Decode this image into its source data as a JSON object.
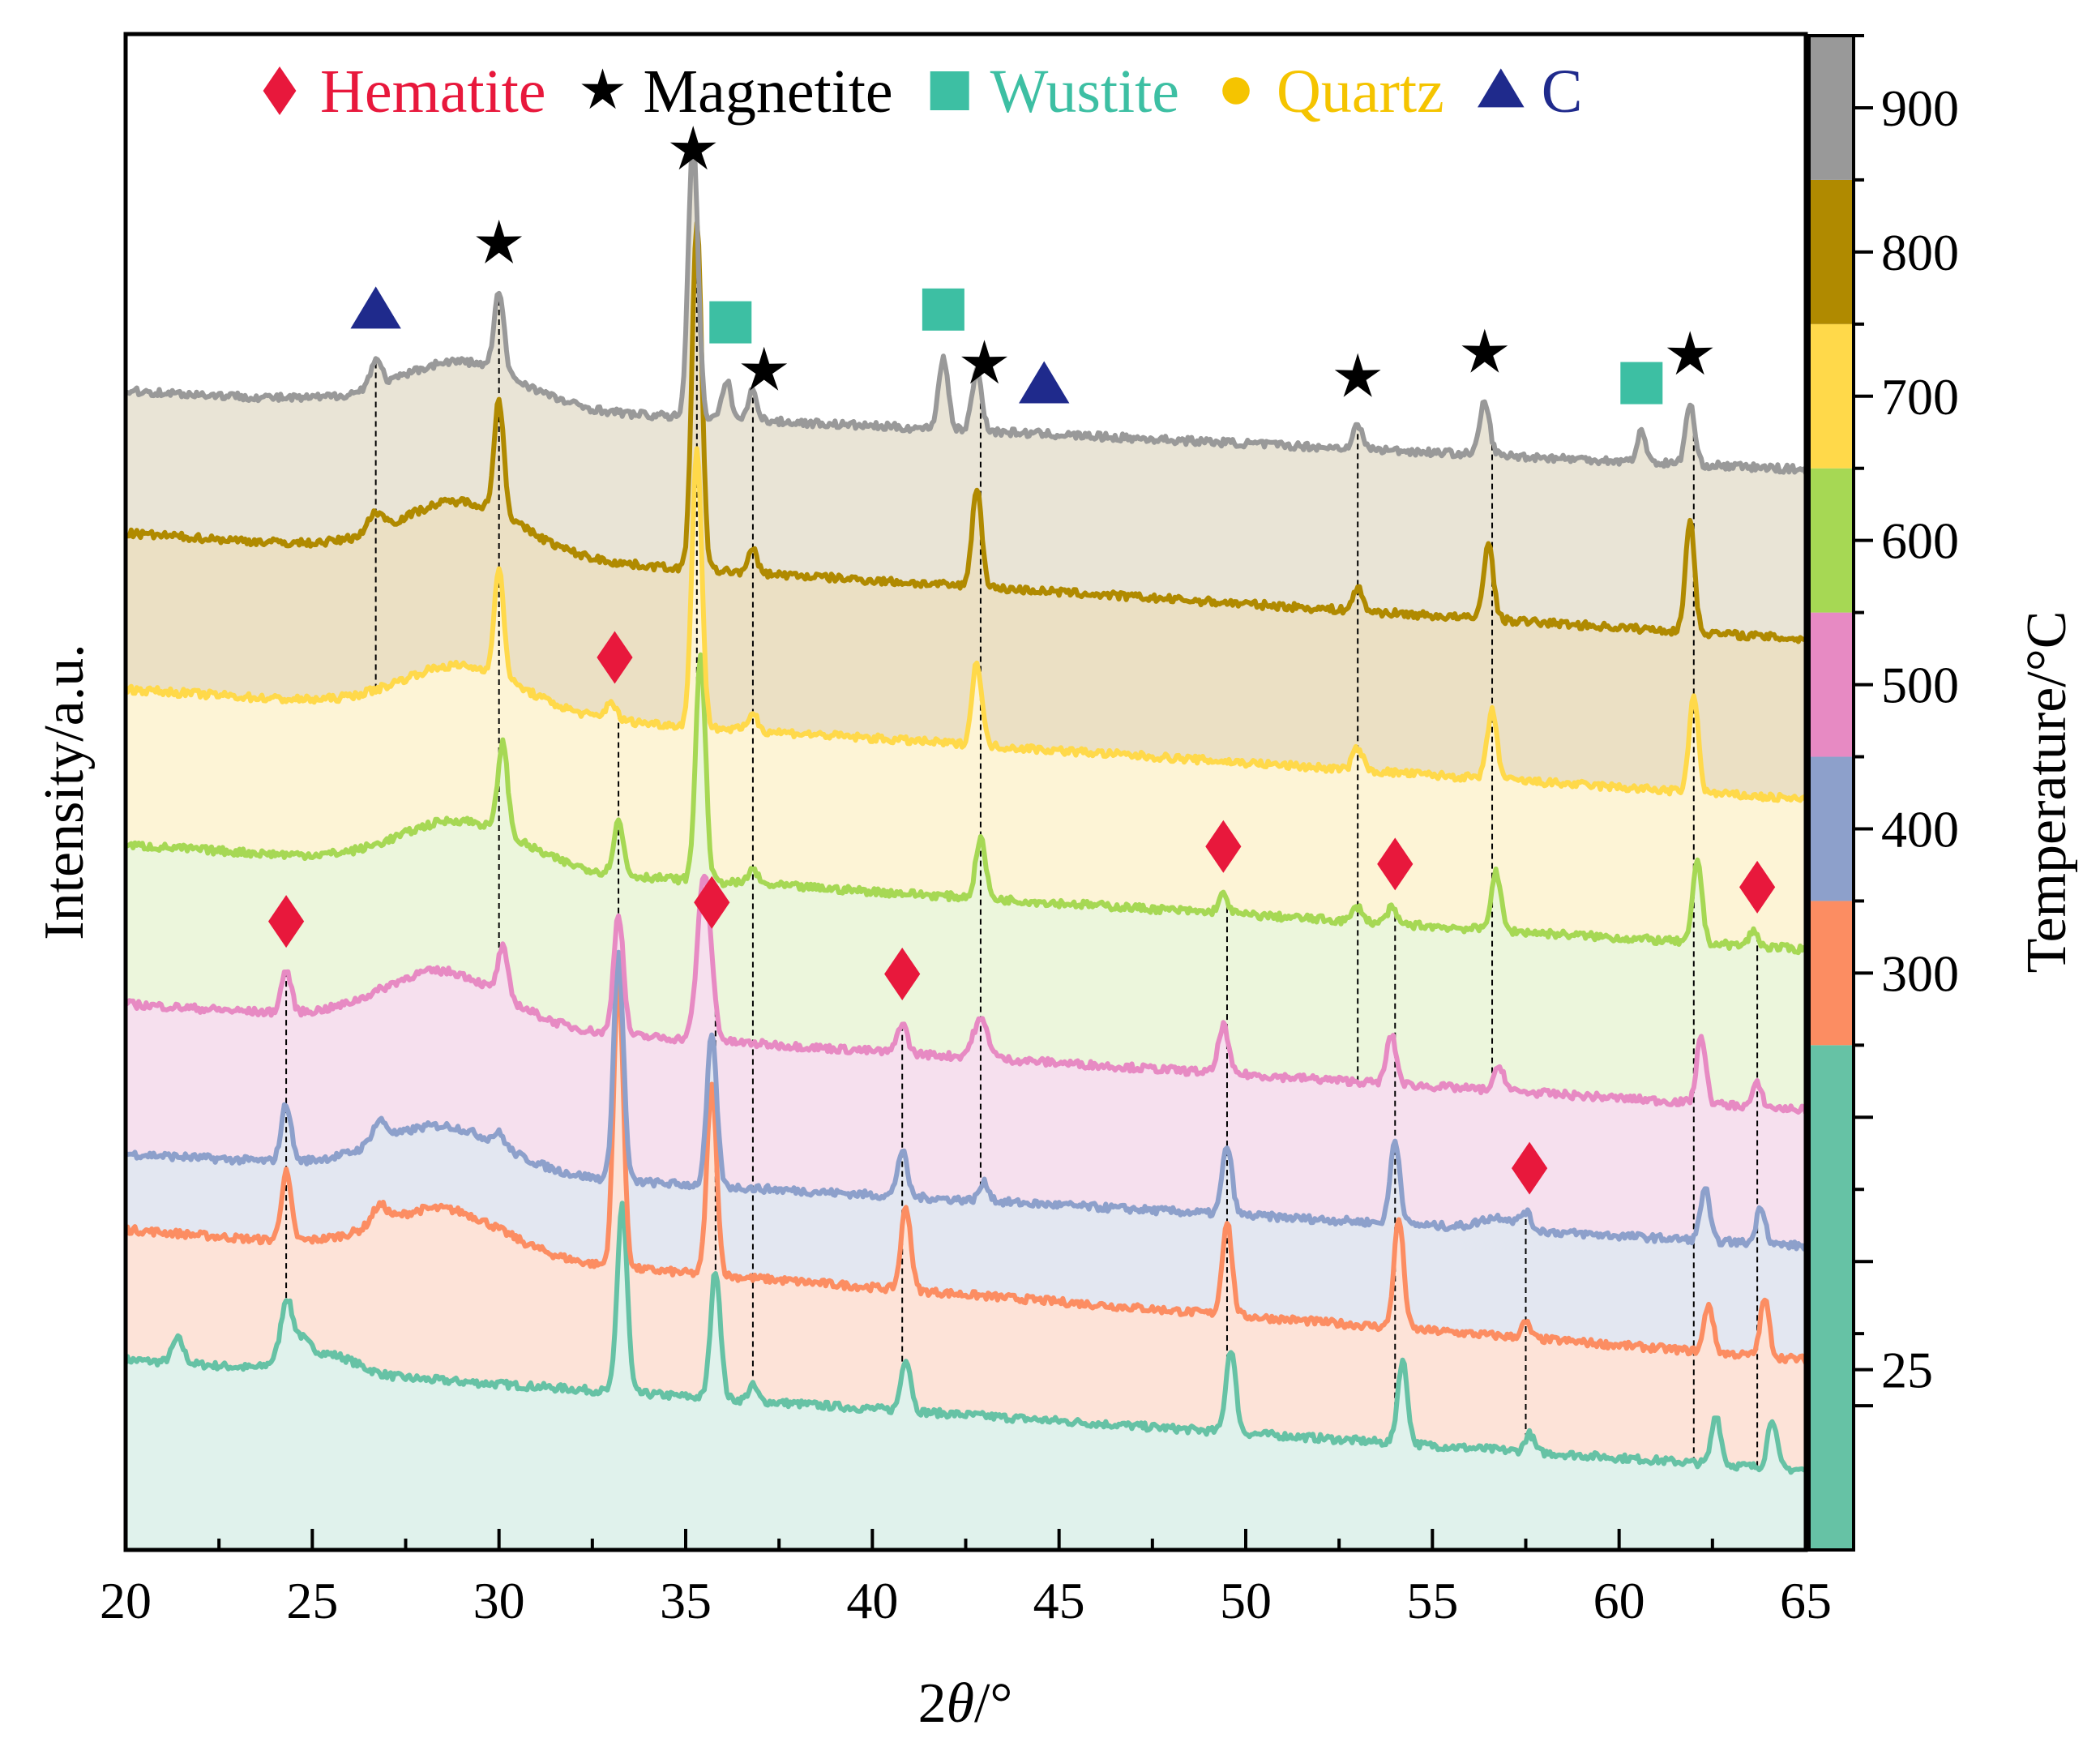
{
  "chart_data": {
    "type": "line",
    "title": "",
    "xlabel_prefix": "2",
    "xlabel_theta": "θ",
    "xlabel_suffix": "/°",
    "ylabel": "Intensity/a.u.",
    "colorbar_label": "Temperature/°C",
    "xlim": [
      20,
      65
    ],
    "x_ticks": [
      "20",
      "25",
      "30",
      "35",
      "40",
      "45",
      "50",
      "55",
      "60",
      "65"
    ],
    "colorbar_ticks": [
      "25",
      "300",
      "400",
      "500",
      "600",
      "700",
      "800",
      "900"
    ],
    "colorbar_tick_values": [
      25,
      300,
      400,
      500,
      600,
      700,
      800,
      900
    ],
    "colorbar_range": [
      -100,
      950
    ],
    "colorbar_bands": [
      {
        "from": -100,
        "to": 250,
        "color": "#66c2a5"
      },
      {
        "from": 250,
        "to": 350,
        "color": "#fc8d62"
      },
      {
        "from": 350,
        "to": 450,
        "color": "#8da0cb"
      },
      {
        "from": 450,
        "to": 550,
        "color": "#e78ac3"
      },
      {
        "from": 550,
        "to": 650,
        "color": "#a6d854"
      },
      {
        "from": 650,
        "to": 750,
        "color": "#ffd94a"
      },
      {
        "from": 750,
        "to": 850,
        "color": "#b08a00"
      },
      {
        "from": 850,
        "to": 950,
        "color": "#999999"
      }
    ],
    "legend": [
      {
        "symbol": "diamond",
        "label": "Hematite",
        "color": "#e8183c"
      },
      {
        "symbol": "star",
        "label": "Magnetite",
        "color": "#000000"
      },
      {
        "symbol": "square",
        "label": "Wustite",
        "color": "#3dbfa3"
      },
      {
        "symbol": "circle",
        "label": "Quartz",
        "color": "#f5c400"
      },
      {
        "symbol": "triangle",
        "label": "C",
        "color": "#1f2a8c"
      }
    ],
    "series": [
      {
        "name": "25",
        "color": "#66c2a5",
        "fill": "#e0f2ec",
        "start": 122,
        "end": 49,
        "bumps": [
          [
            24.5,
            20,
            0.35
          ],
          [
            25.5,
            12,
            0.7
          ]
        ],
        "peaks": [
          [
            21.4,
            16,
            0.15
          ],
          [
            24.3,
            28,
            0.13
          ],
          [
            33.3,
            125,
            0.13
          ],
          [
            35.8,
            85,
            0.13
          ],
          [
            36.8,
            10,
            0.12
          ],
          [
            40.9,
            35,
            0.13
          ],
          [
            49.6,
            55,
            0.13
          ],
          [
            54.2,
            55,
            0.13
          ],
          [
            57.6,
            12,
            0.12
          ],
          [
            62.6,
            33,
            0.12
          ],
          [
            64.1,
            33,
            0.12
          ]
        ]
      },
      {
        "name": "300",
        "color": "#fc8d62",
        "fill": "#fde3d8",
        "start": 208,
        "end": 122,
        "bumps": [
          [
            28.5,
            30,
            1.6
          ]
        ],
        "peaks": [
          [
            24.3,
            45,
            0.13
          ],
          [
            26.8,
            12,
            0.2
          ],
          [
            33.2,
            190,
            0.13
          ],
          [
            35.7,
            125,
            0.13
          ],
          [
            40.9,
            55,
            0.13
          ],
          [
            49.5,
            62,
            0.13
          ],
          [
            54.1,
            72,
            0.13
          ],
          [
            57.5,
            10,
            0.12
          ],
          [
            62.4,
            32,
            0.12
          ],
          [
            63.9,
            38,
            0.12
          ]
        ]
      },
      {
        "name": "400",
        "color": "#8da0cb",
        "fill": "#e3e7f1",
        "start": 258,
        "end": 197,
        "bumps": [
          [
            28.5,
            30,
            1.6
          ],
          [
            56.8,
            8,
            0.5
          ]
        ],
        "peaks": [
          [
            24.3,
            38,
            0.13
          ],
          [
            26.8,
            14,
            0.2
          ],
          [
            30.0,
            8,
            0.15
          ],
          [
            33.2,
            150,
            0.13
          ],
          [
            35.7,
            100,
            0.13
          ],
          [
            40.8,
            30,
            0.13
          ],
          [
            43.0,
            12,
            0.13
          ],
          [
            49.5,
            45,
            0.13
          ],
          [
            54.0,
            55,
            0.13
          ],
          [
            57.5,
            10,
            0.12
          ],
          [
            62.3,
            35,
            0.12
          ],
          [
            63.8,
            25,
            0.12
          ]
        ]
      },
      {
        "name": "500",
        "color": "#e78ac3",
        "fill": "#f6e0ee",
        "start": 357,
        "end": 287,
        "bumps": [
          [
            28.5,
            35,
            1.6
          ]
        ],
        "peaks": [
          [
            24.3,
            28,
            0.13
          ],
          [
            30.1,
            32,
            0.13
          ],
          [
            33.2,
            80,
            0.13
          ],
          [
            35.5,
            110,
            0.18
          ],
          [
            40.8,
            20,
            0.13
          ],
          [
            42.9,
            25,
            0.2
          ],
          [
            49.4,
            32,
            0.13
          ],
          [
            53.9,
            32,
            0.13
          ],
          [
            56.8,
            16,
            0.13
          ],
          [
            62.2,
            45,
            0.12
          ],
          [
            63.7,
            15,
            0.12
          ]
        ]
      },
      {
        "name": "600",
        "color": "#a6d854",
        "fill": "#ecf6dc",
        "start": 462,
        "end": 393,
        "bumps": [
          [
            29.0,
            30,
            1.6
          ]
        ],
        "peaks": [
          [
            30.1,
            60,
            0.13
          ],
          [
            33.2,
            35,
            0.13
          ],
          [
            35.4,
            150,
            0.13
          ],
          [
            36.8,
            10,
            0.12
          ],
          [
            42.9,
            40,
            0.13
          ],
          [
            49.4,
            12,
            0.13
          ],
          [
            53.0,
            10,
            0.13
          ],
          [
            53.9,
            10,
            0.13
          ],
          [
            56.7,
            38,
            0.13
          ],
          [
            62.1,
            55,
            0.12
          ],
          [
            63.6,
            10,
            0.12
          ]
        ]
      },
      {
        "name": "700",
        "color": "#ffd94a",
        "fill": "#fdf4d6",
        "start": 565,
        "end": 492,
        "bumps": [
          [
            29.0,
            30,
            1.6
          ]
        ],
        "peaks": [
          [
            30.0,
            70,
            0.13
          ],
          [
            33.0,
            12,
            0.13
          ],
          [
            35.3,
            185,
            0.13
          ],
          [
            36.8,
            12,
            0.12
          ],
          [
            42.8,
            55,
            0.13
          ],
          [
            53.0,
            15,
            0.13
          ],
          [
            56.6,
            45,
            0.13
          ],
          [
            62.0,
            65,
            0.12
          ]
        ]
      },
      {
        "name": "800",
        "color": "#b08a00",
        "fill": "#ebe0c4",
        "start": 668,
        "end": 598,
        "bumps": [
          [
            29.0,
            35,
            1.6
          ]
        ],
        "peaks": [
          [
            26.7,
            12,
            0.2
          ],
          [
            30.0,
            75,
            0.13
          ],
          [
            35.3,
            230,
            0.13
          ],
          [
            36.8,
            15,
            0.12
          ],
          [
            42.8,
            65,
            0.13
          ],
          [
            53.0,
            15,
            0.13
          ],
          [
            56.5,
            50,
            0.13
          ],
          [
            61.9,
            75,
            0.12
          ]
        ]
      },
      {
        "name": "900",
        "color": "#999999",
        "fill": "#e9e4d6",
        "start": 762,
        "end": 710,
        "bumps": [
          [
            29.0,
            30,
            1.6
          ]
        ],
        "peaks": [
          [
            26.7,
            18,
            0.15
          ],
          [
            30.0,
            52,
            0.13
          ],
          [
            35.2,
            185,
            0.13
          ],
          [
            36.1,
            25,
            0.12
          ],
          [
            36.8,
            20,
            0.12
          ],
          [
            41.9,
            47,
            0.13
          ],
          [
            42.8,
            40,
            0.13
          ],
          [
            53.0,
            15,
            0.13
          ],
          [
            56.4,
            35,
            0.13
          ],
          [
            60.6,
            20,
            0.12
          ],
          [
            61.9,
            40,
            0.12
          ]
        ]
      }
    ],
    "guide_lines": [
      {
        "x": 24.3,
        "from": 0,
        "to": 3
      },
      {
        "x": 26.7,
        "from": 5,
        "to": 7
      },
      {
        "x": 30.0,
        "from": 3,
        "to": 7
      },
      {
        "x": 33.2,
        "from": 3,
        "to": 5
      },
      {
        "x": 35.3,
        "from": 4,
        "to": 7
      },
      {
        "x": 35.8,
        "from": 0,
        "to": 3
      },
      {
        "x": 36.8,
        "from": 0,
        "to": 7
      },
      {
        "x": 40.8,
        "from": 0,
        "to": 3
      },
      {
        "x": 42.9,
        "from": 2,
        "to": 7
      },
      {
        "x": 49.5,
        "from": 0,
        "to": 4
      },
      {
        "x": 53.0,
        "from": 3,
        "to": 7
      },
      {
        "x": 54.0,
        "from": 0,
        "to": 4
      },
      {
        "x": 56.6,
        "from": 3,
        "to": 7
      },
      {
        "x": 57.5,
        "from": 0,
        "to": 2
      },
      {
        "x": 62.0,
        "from": 0,
        "to": 7
      },
      {
        "x": 63.7,
        "from": 0,
        "to": 4
      }
    ],
    "annotations": [
      {
        "phase": "Hematite",
        "x": 24.3,
        "series": 3
      },
      {
        "phase": "Hematite",
        "x": 33.1,
        "series": 5
      },
      {
        "phase": "Hematite",
        "x": 35.7,
        "series": 3
      },
      {
        "phase": "Hematite",
        "x": 40.8,
        "series": 3
      },
      {
        "phase": "Hematite",
        "x": 49.4,
        "series": 4
      },
      {
        "phase": "Hematite",
        "x": 54.0,
        "series": 4
      },
      {
        "phase": "Hematite",
        "x": 57.6,
        "series": 2
      },
      {
        "phase": "Hematite",
        "x": 63.7,
        "series": 4
      },
      {
        "phase": "Magnetite",
        "x": 30.0,
        "series": 7
      },
      {
        "phase": "Magnetite",
        "x": 35.2,
        "series": 7
      },
      {
        "phase": "Magnetite",
        "x": 37.1,
        "series": 7
      },
      {
        "phase": "Magnetite",
        "x": 43.0,
        "series": 7
      },
      {
        "phase": "Magnetite",
        "x": 53.0,
        "series": 7
      },
      {
        "phase": "Magnetite",
        "x": 56.4,
        "series": 7
      },
      {
        "phase": "Magnetite",
        "x": 61.9,
        "series": 7
      },
      {
        "phase": "Wustite",
        "x": 36.2,
        "series": 7
      },
      {
        "phase": "Wustite",
        "x": 41.9,
        "series": 7
      },
      {
        "phase": "Wustite",
        "x": 60.6,
        "series": 7
      },
      {
        "phase": "C",
        "x": 26.7,
        "series": 7
      },
      {
        "phase": "C",
        "x": 44.6,
        "series": 7
      }
    ]
  }
}
